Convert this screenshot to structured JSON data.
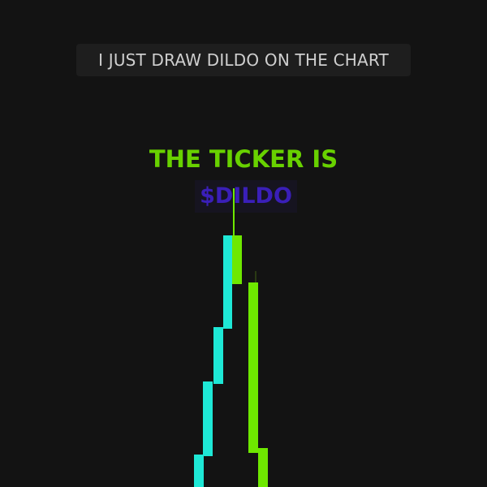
{
  "caption": "I JUST DRAW DILDO ON THE CHART",
  "headline": "THE TICKER IS",
  "ticker": "$DILDO",
  "colors": {
    "background": "#131313",
    "caption_text": "#cfcfcf",
    "headline": "#68d100",
    "ticker": "#3a1fb8",
    "candle_cyan": "#1ee8d6",
    "candle_green": "#6ee800"
  }
}
